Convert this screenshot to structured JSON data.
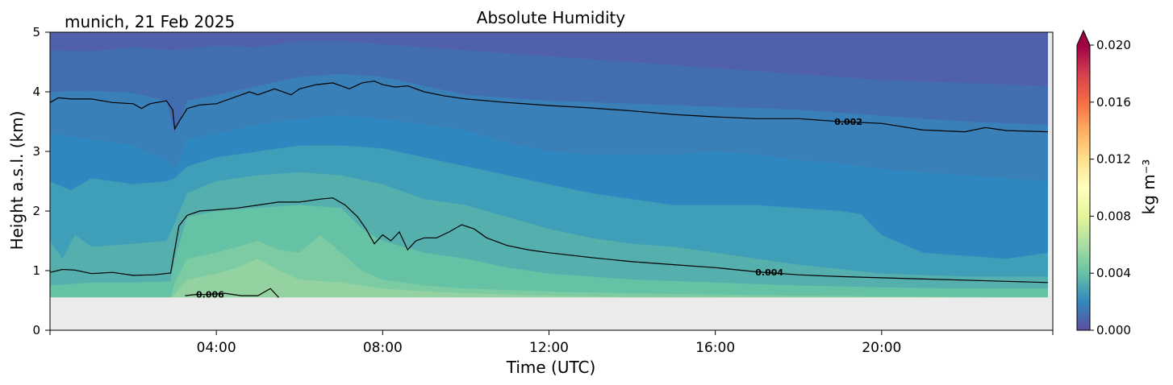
{
  "chart_data": {
    "type": "heatmap",
    "title": "Absolute Humidity",
    "subtitle": "munich, 21 Feb 2025",
    "xlabel": "Time (UTC)",
    "ylabel": "Height a.s.l. (km)",
    "xlim": [
      0,
      24
    ],
    "ylim": [
      0,
      5
    ],
    "x_ticks": [
      {
        "value": 4,
        "label": "04:00"
      },
      {
        "value": 8,
        "label": "08:00"
      },
      {
        "value": 12,
        "label": "12:00"
      },
      {
        "value": 16,
        "label": "16:00"
      },
      {
        "value": 20,
        "label": "20:00"
      }
    ],
    "y_ticks": [
      {
        "value": 0,
        "label": "0"
      },
      {
        "value": 1,
        "label": "1"
      },
      {
        "value": 2,
        "label": "2"
      },
      {
        "value": 3,
        "label": "3"
      },
      {
        "value": 4,
        "label": "4"
      },
      {
        "value": 5,
        "label": "5"
      }
    ],
    "no_data_below_km": 0.55,
    "no_data_color": "#ebebeb",
    "colorbar": {
      "label": "kg m⁻³",
      "min": 0.0,
      "max": 0.02,
      "extend": "max",
      "colormap": "Spectral_r",
      "ticks": [
        {
          "value": 0.0,
          "label": "0.000"
        },
        {
          "value": 0.004,
          "label": "0.004"
        },
        {
          "value": 0.008,
          "label": "0.008"
        },
        {
          "value": 0.012,
          "label": "0.012"
        },
        {
          "value": 0.016,
          "label": "0.016"
        },
        {
          "value": 0.02,
          "label": "0.020"
        }
      ],
      "colors": [
        "#5e4fa2",
        "#3288bd",
        "#66c2a5",
        "#abdda4",
        "#e6f598",
        "#ffffbf",
        "#fee08b",
        "#fdae61",
        "#f46d43",
        "#d53e4f",
        "#9e0142"
      ],
      "extend_color": "#9e0142"
    },
    "fill_levels": [
      {
        "level": 0.0,
        "color": "#5060aa",
        "boundary": [
          [
            0,
            5
          ],
          [
            24,
            5
          ]
        ]
      },
      {
        "level": 0.001,
        "color": "#436db1",
        "boundary": [
          [
            0,
            4.7
          ],
          [
            1,
            4.68
          ],
          [
            2,
            4.75
          ],
          [
            3,
            4.7
          ],
          [
            4,
            4.78
          ],
          [
            5,
            4.75
          ],
          [
            6,
            4.85
          ],
          [
            7,
            4.85
          ],
          [
            8,
            4.8
          ],
          [
            10,
            4.7
          ],
          [
            12,
            4.6
          ],
          [
            14,
            4.5
          ],
          [
            16,
            4.4
          ],
          [
            18,
            4.3
          ],
          [
            20,
            4.2
          ],
          [
            22,
            4.15
          ],
          [
            24,
            4.1
          ]
        ]
      },
      {
        "level": 0.0015,
        "color": "#3a80b8",
        "boundary": [
          [
            0,
            4.0
          ],
          [
            1,
            4.02
          ],
          [
            2,
            3.98
          ],
          [
            2.8,
            3.85
          ],
          [
            3.0,
            3.3
          ],
          [
            3.3,
            3.85
          ],
          [
            4,
            3.95
          ],
          [
            5,
            4.1
          ],
          [
            6,
            4.25
          ],
          [
            7,
            4.3
          ],
          [
            8,
            4.25
          ],
          [
            9,
            4.1
          ],
          [
            10,
            3.95
          ],
          [
            12,
            3.85
          ],
          [
            14,
            3.8
          ],
          [
            16,
            3.75
          ],
          [
            18,
            3.7
          ],
          [
            20,
            3.6
          ],
          [
            22,
            3.5
          ],
          [
            24,
            3.45
          ]
        ]
      },
      {
        "level": 0.0025,
        "color": "#2e88bf",
        "boundary": [
          [
            0,
            3.3
          ],
          [
            1,
            3.2
          ],
          [
            2,
            3.1
          ],
          [
            2.8,
            2.85
          ],
          [
            3.0,
            2.7
          ],
          [
            3.3,
            3.2
          ],
          [
            4,
            3.3
          ],
          [
            5,
            3.45
          ],
          [
            6,
            3.55
          ],
          [
            7,
            3.6
          ],
          [
            8,
            3.55
          ],
          [
            9,
            3.45
          ],
          [
            10,
            3.35
          ],
          [
            11,
            3.15
          ],
          [
            12,
            3.0
          ],
          [
            13,
            2.95
          ],
          [
            14,
            2.95
          ],
          [
            15,
            2.95
          ],
          [
            16,
            3.0
          ],
          [
            17,
            2.95
          ],
          [
            18,
            2.85
          ],
          [
            19,
            2.8
          ],
          [
            20,
            2.7
          ],
          [
            21,
            2.65
          ],
          [
            22,
            2.6
          ],
          [
            24,
            2.5
          ]
        ]
      },
      {
        "level": 0.003,
        "color": "#3f9eb8",
        "boundary": [
          [
            0,
            2.5
          ],
          [
            0.5,
            2.35
          ],
          [
            1,
            2.55
          ],
          [
            2,
            2.45
          ],
          [
            2.8,
            2.5
          ],
          [
            3.0,
            2.55
          ],
          [
            3.3,
            2.75
          ],
          [
            4,
            2.9
          ],
          [
            5,
            3.0
          ],
          [
            6,
            3.1
          ],
          [
            7,
            3.1
          ],
          [
            8,
            3.05
          ],
          [
            9,
            2.9
          ],
          [
            10,
            2.75
          ],
          [
            11,
            2.6
          ],
          [
            12,
            2.45
          ],
          [
            13,
            2.3
          ],
          [
            14,
            2.2
          ],
          [
            15,
            2.1
          ],
          [
            16,
            2.1
          ],
          [
            17,
            2.1
          ],
          [
            18,
            2.05
          ],
          [
            19,
            2.0
          ],
          [
            19.5,
            1.95
          ],
          [
            20,
            1.6
          ],
          [
            21,
            1.3
          ],
          [
            22,
            1.25
          ],
          [
            23,
            1.2
          ],
          [
            24,
            1.3
          ]
        ]
      },
      {
        "level": 0.0035,
        "color": "#55b0ad",
        "boundary": [
          [
            0,
            1.5
          ],
          [
            0.3,
            1.2
          ],
          [
            0.6,
            1.6
          ],
          [
            1,
            1.4
          ],
          [
            2,
            1.45
          ],
          [
            2.8,
            1.5
          ],
          [
            3.0,
            1.8
          ],
          [
            3.3,
            2.3
          ],
          [
            4,
            2.5
          ],
          [
            5,
            2.6
          ],
          [
            6,
            2.65
          ],
          [
            7,
            2.6
          ],
          [
            8,
            2.45
          ],
          [
            9,
            2.2
          ],
          [
            10,
            2.1
          ],
          [
            11,
            1.9
          ],
          [
            12,
            1.7
          ],
          [
            13,
            1.55
          ],
          [
            14,
            1.45
          ],
          [
            15,
            1.4
          ],
          [
            16,
            1.3
          ],
          [
            17,
            1.2
          ],
          [
            18,
            1.1
          ],
          [
            20,
            0.95
          ],
          [
            22,
            0.9
          ],
          [
            24,
            0.9
          ]
        ]
      },
      {
        "level": 0.004,
        "color": "#66c2a5",
        "boundary": [
          [
            0,
            0.75
          ],
          [
            1,
            0.8
          ],
          [
            2,
            0.8
          ],
          [
            2.9,
            0.82
          ],
          [
            3.0,
            1.2
          ],
          [
            3.3,
            1.9
          ],
          [
            4,
            2.0
          ],
          [
            5,
            2.05
          ],
          [
            6,
            2.1
          ],
          [
            7,
            2.05
          ],
          [
            7.5,
            1.7
          ],
          [
            8,
            1.5
          ],
          [
            9,
            1.3
          ],
          [
            10,
            1.2
          ],
          [
            11,
            1.05
          ],
          [
            12,
            0.95
          ],
          [
            13,
            0.9
          ],
          [
            14,
            0.85
          ],
          [
            16,
            0.8
          ],
          [
            18,
            0.75
          ],
          [
            20,
            0.72
          ],
          [
            22,
            0.7
          ],
          [
            24,
            0.7
          ]
        ]
      },
      {
        "level": 0.005,
        "color": "#7dcba2",
        "boundary": [
          [
            0,
            0.55
          ],
          [
            2.9,
            0.55
          ],
          [
            3.0,
            0.8
          ],
          [
            3.3,
            1.2
          ],
          [
            4,
            1.3
          ],
          [
            5,
            1.5
          ],
          [
            5.5,
            1.35
          ],
          [
            6,
            1.3
          ],
          [
            6.5,
            1.6
          ],
          [
            7,
            1.3
          ],
          [
            7.5,
            1.0
          ],
          [
            8,
            0.85
          ],
          [
            9,
            0.75
          ],
          [
            10,
            0.7
          ],
          [
            12,
            0.65
          ],
          [
            14,
            0.62
          ],
          [
            16,
            0.6
          ],
          [
            18,
            0.58
          ],
          [
            20,
            0.57
          ],
          [
            24,
            0.55
          ]
        ]
      },
      {
        "level": 0.006,
        "color": "#94d3a1",
        "boundary": [
          [
            0,
            0.55
          ],
          [
            2.9,
            0.55
          ],
          [
            3.0,
            0.6
          ],
          [
            3.3,
            0.85
          ],
          [
            4,
            0.95
          ],
          [
            4.5,
            1.05
          ],
          [
            5,
            1.2
          ],
          [
            5.5,
            1.0
          ],
          [
            6,
            0.85
          ],
          [
            7,
            0.8
          ],
          [
            8,
            0.7
          ],
          [
            9,
            0.65
          ],
          [
            10,
            0.62
          ],
          [
            12,
            0.58
          ],
          [
            14,
            0.56
          ],
          [
            24,
            0.55
          ]
        ]
      }
    ],
    "contours": [
      {
        "level": 0.002,
        "label": "0.002",
        "label_x": 19.2,
        "label_y": 3.5,
        "points": [
          [
            0,
            3.82
          ],
          [
            0.2,
            3.9
          ],
          [
            0.5,
            3.88
          ],
          [
            1,
            3.88
          ],
          [
            1.5,
            3.82
          ],
          [
            2,
            3.8
          ],
          [
            2.2,
            3.72
          ],
          [
            2.4,
            3.8
          ],
          [
            2.8,
            3.85
          ],
          [
            2.95,
            3.7
          ],
          [
            3.0,
            3.38
          ],
          [
            3.1,
            3.5
          ],
          [
            3.3,
            3.72
          ],
          [
            3.6,
            3.78
          ],
          [
            4,
            3.8
          ],
          [
            4.4,
            3.9
          ],
          [
            4.8,
            4.0
          ],
          [
            5,
            3.95
          ],
          [
            5.4,
            4.05
          ],
          [
            5.8,
            3.95
          ],
          [
            6,
            4.05
          ],
          [
            6.4,
            4.12
          ],
          [
            6.8,
            4.15
          ],
          [
            7,
            4.1
          ],
          [
            7.2,
            4.05
          ],
          [
            7.5,
            4.15
          ],
          [
            7.8,
            4.18
          ],
          [
            8,
            4.12
          ],
          [
            8.3,
            4.08
          ],
          [
            8.6,
            4.1
          ],
          [
            9,
            4.0
          ],
          [
            9.5,
            3.93
          ],
          [
            10,
            3.88
          ],
          [
            11,
            3.82
          ],
          [
            12,
            3.77
          ],
          [
            13,
            3.73
          ],
          [
            14,
            3.68
          ],
          [
            15,
            3.62
          ],
          [
            16,
            3.58
          ],
          [
            17,
            3.55
          ],
          [
            18,
            3.55
          ],
          [
            19,
            3.5
          ],
          [
            20,
            3.47
          ],
          [
            21,
            3.36
          ],
          [
            22,
            3.33
          ],
          [
            22.5,
            3.4
          ],
          [
            23,
            3.35
          ],
          [
            24,
            3.33
          ]
        ]
      },
      {
        "level": 0.004,
        "label": "0.004",
        "label_x": 17.3,
        "label_y": 0.97,
        "points": [
          [
            0,
            0.97
          ],
          [
            0.3,
            1.02
          ],
          [
            0.6,
            1.01
          ],
          [
            1,
            0.95
          ],
          [
            1.5,
            0.97
          ],
          [
            2,
            0.92
          ],
          [
            2.5,
            0.93
          ],
          [
            2.9,
            0.96
          ],
          [
            3.0,
            1.35
          ],
          [
            3.1,
            1.75
          ],
          [
            3.3,
            1.93
          ],
          [
            3.6,
            2.0
          ],
          [
            4,
            2.02
          ],
          [
            4.5,
            2.05
          ],
          [
            5,
            2.1
          ],
          [
            5.5,
            2.15
          ],
          [
            6,
            2.15
          ],
          [
            6.5,
            2.2
          ],
          [
            6.8,
            2.22
          ],
          [
            7.1,
            2.1
          ],
          [
            7.4,
            1.9
          ],
          [
            7.6,
            1.7
          ],
          [
            7.8,
            1.45
          ],
          [
            8,
            1.6
          ],
          [
            8.2,
            1.5
          ],
          [
            8.4,
            1.65
          ],
          [
            8.6,
            1.35
          ],
          [
            8.8,
            1.5
          ],
          [
            9,
            1.55
          ],
          [
            9.3,
            1.55
          ],
          [
            9.6,
            1.65
          ],
          [
            9.9,
            1.77
          ],
          [
            10.2,
            1.7
          ],
          [
            10.5,
            1.55
          ],
          [
            11,
            1.42
          ],
          [
            11.5,
            1.35
          ],
          [
            12,
            1.3
          ],
          [
            13,
            1.22
          ],
          [
            14,
            1.15
          ],
          [
            15,
            1.1
          ],
          [
            16,
            1.05
          ],
          [
            17,
            0.98
          ],
          [
            18,
            0.93
          ],
          [
            19,
            0.9
          ],
          [
            20,
            0.88
          ],
          [
            21,
            0.86
          ],
          [
            22,
            0.84
          ],
          [
            23,
            0.82
          ],
          [
            24,
            0.8
          ]
        ]
      },
      {
        "level": 0.006,
        "label": "0.006",
        "label_x": 3.85,
        "label_y": 0.6,
        "points": [
          [
            3.25,
            0.58
          ],
          [
            3.5,
            0.6
          ],
          [
            3.8,
            0.6
          ],
          [
            4.2,
            0.62
          ],
          [
            4.6,
            0.58
          ],
          [
            5,
            0.58
          ],
          [
            5.3,
            0.7
          ],
          [
            5.5,
            0.55
          ]
        ]
      }
    ]
  }
}
